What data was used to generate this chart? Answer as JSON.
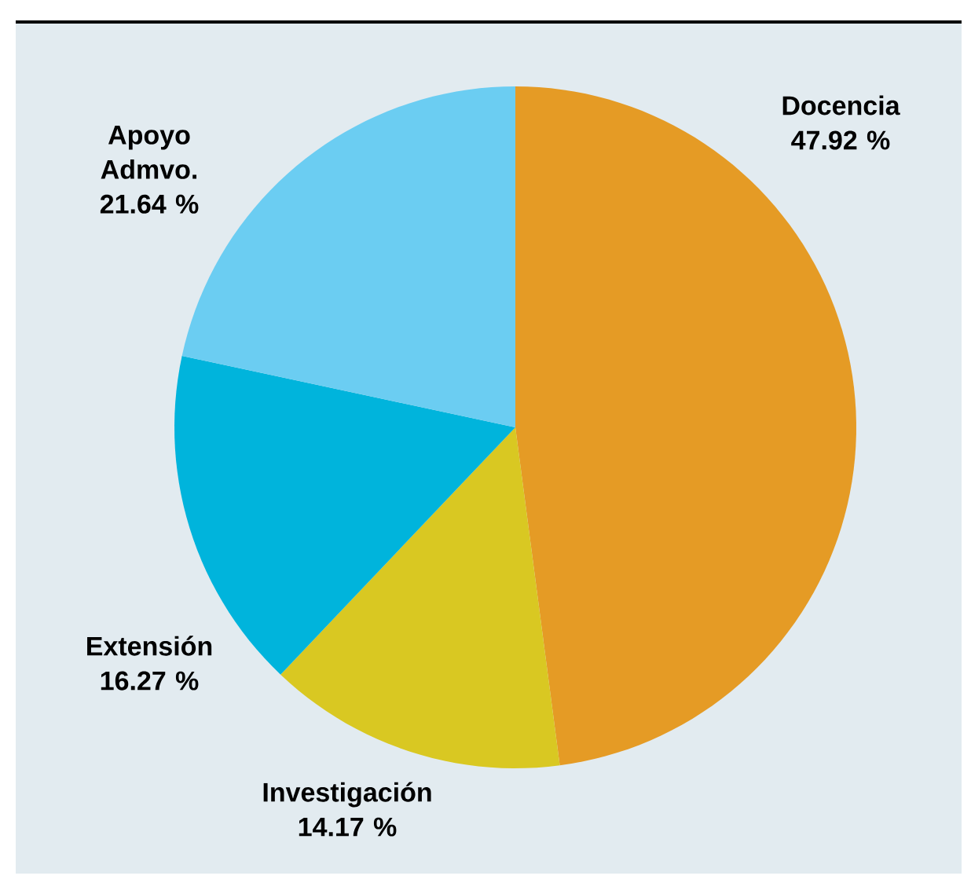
{
  "chart_data": {
    "type": "pie",
    "categories": [
      "Docencia",
      "Investigación",
      "Extensión",
      "Apoyo Admvo."
    ],
    "values": [
      47.92,
      14.17,
      16.27,
      21.64
    ],
    "value_labels": [
      "47.92 %",
      "14.17 %",
      "16.27 %",
      "21.64 %"
    ],
    "colors": [
      "#e59b25",
      "#d9c822",
      "#00b4dc",
      "#6bcdf2"
    ]
  }
}
